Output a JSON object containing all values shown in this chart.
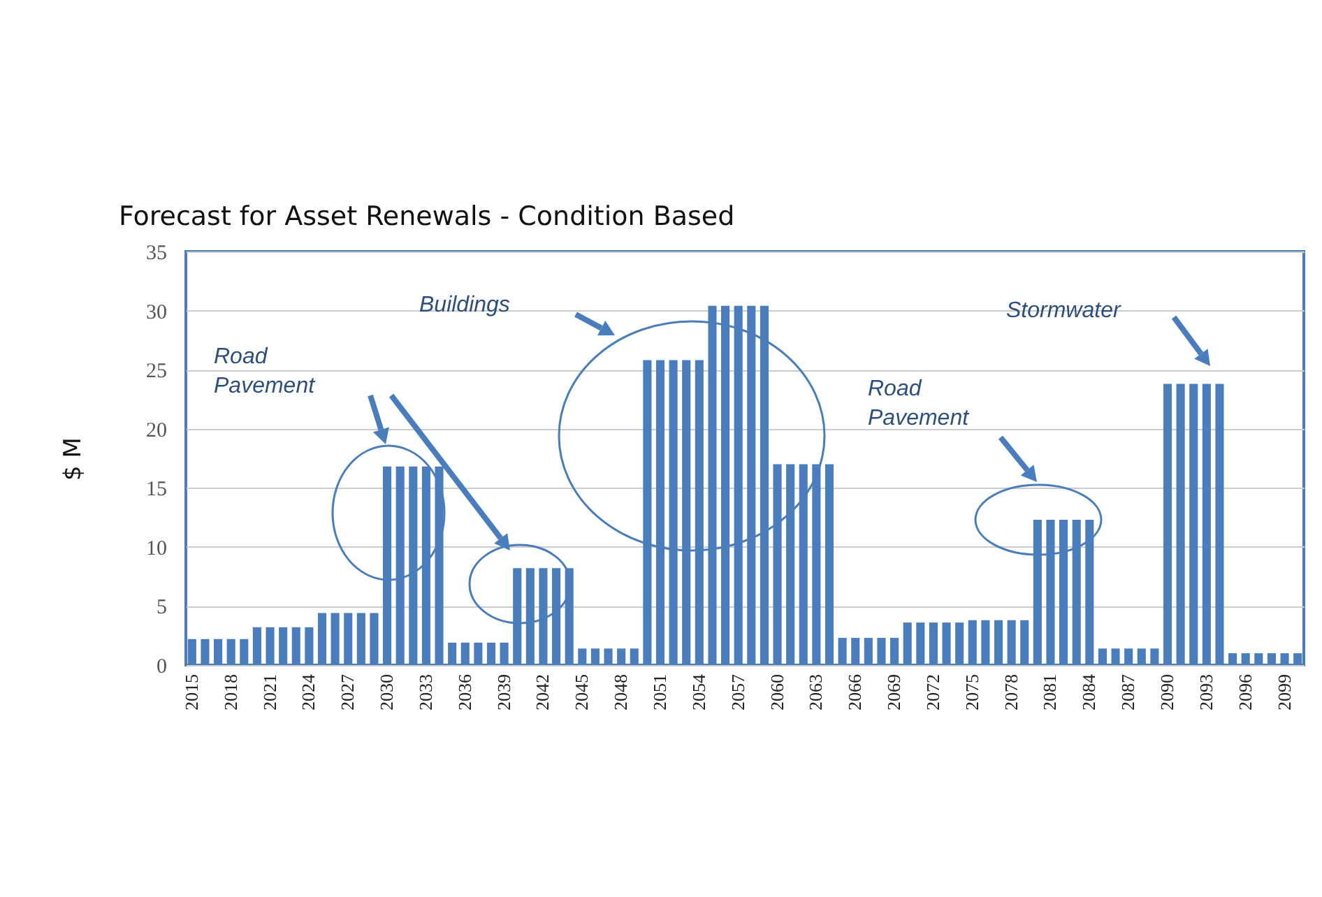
{
  "chart_data": {
    "type": "bar",
    "title": "Forecast for Asset Renewals - Condition Based",
    "ylabel": "$ M",
    "categories": [
      "2015",
      null,
      null,
      "2018",
      null,
      null,
      "2021",
      null,
      null,
      "2024",
      null,
      null,
      "2027",
      null,
      null,
      "2030",
      null,
      null,
      "2033",
      null,
      null,
      "2036",
      null,
      null,
      "2039",
      null,
      null,
      "2042",
      null,
      null,
      "2045",
      null,
      null,
      "2048",
      null,
      null,
      "2051",
      null,
      null,
      "2054",
      null,
      null,
      "2057",
      null,
      null,
      "2060",
      null,
      null,
      "2063",
      null,
      null,
      "2066",
      null,
      null,
      "2069",
      null,
      null,
      "2072",
      null,
      null,
      "2075",
      null,
      null,
      "2078",
      null,
      null,
      "2081",
      null,
      null,
      "2084",
      null,
      null,
      "2087",
      null,
      null,
      "2090",
      null,
      null,
      "2093",
      null,
      null,
      "2096",
      null,
      null,
      "2099",
      null
    ],
    "values": [
      2.2,
      2.2,
      2.2,
      2.2,
      2.2,
      3.2,
      3.2,
      3.2,
      3.2,
      3.2,
      4.4,
      4.4,
      4.4,
      4.4,
      4.4,
      16.8,
      16.8,
      16.8,
      16.8,
      16.8,
      1.9,
      1.9,
      1.9,
      1.9,
      1.9,
      8.2,
      8.2,
      8.2,
      8.2,
      8.2,
      1.4,
      1.4,
      1.4,
      1.4,
      1.4,
      25.8,
      25.8,
      25.8,
      25.8,
      25.8,
      30.4,
      30.4,
      30.4,
      30.4,
      30.4,
      17,
      17,
      17,
      17,
      17,
      2.3,
      2.3,
      2.3,
      2.3,
      2.3,
      3.6,
      3.6,
      3.6,
      3.6,
      3.6,
      3.8,
      3.8,
      3.8,
      3.8,
      3.8,
      12.3,
      12.3,
      12.3,
      12.3,
      12.3,
      1.4,
      1.4,
      1.4,
      1.4,
      1.4,
      23.8,
      23.8,
      23.8,
      23.8,
      23.8,
      1.0,
      1.0,
      1.0,
      1.0,
      1.0,
      1.0
    ],
    "color": "#4a7dbb",
    "ylim": [
      0,
      35
    ],
    "yticks": [
      0,
      5,
      10,
      15,
      20,
      25,
      30,
      35
    ],
    "grid": "y",
    "annotations": [
      "Road Pavement",
      "Buildings",
      "Road Pavement",
      "Stormwater"
    ]
  }
}
